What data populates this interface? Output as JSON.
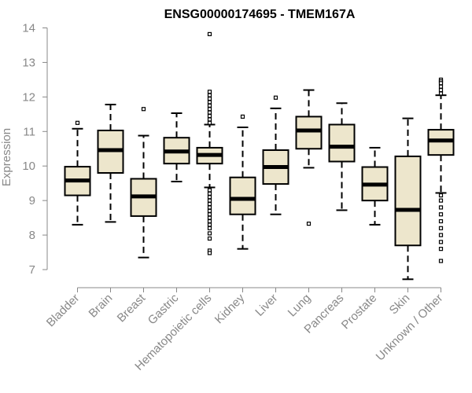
{
  "chart_data": {
    "type": "box",
    "title": "ENSG00000174695 - TMEM167A",
    "ylabel": "Expression",
    "xlabel": "",
    "ylim": [
      6.6,
      14.3
    ],
    "yticks": [
      7,
      8,
      9,
      10,
      11,
      12,
      13,
      14
    ],
    "ytick_labels": [
      "7",
      "8",
      "9",
      "10",
      "11",
      "12",
      "13",
      "14"
    ],
    "colors": {
      "box_fill": "#ede6cc",
      "box_stroke": "#000000",
      "axis": "#888888",
      "median": "#000000"
    },
    "categories": [
      "Bladder",
      "Brain",
      "Breast",
      "Gastric",
      "Hematopoietic cells",
      "Kidney",
      "Liver",
      "Lung",
      "Pancreas",
      "Prostate",
      "Skin",
      "Unknown / Other"
    ],
    "boxes": [
      {
        "name": "Bladder",
        "whisker_low": 8.3,
        "q1": 9.15,
        "median": 9.58,
        "q3": 9.98,
        "whisker_high": 11.08,
        "outliers": [
          11.25
        ]
      },
      {
        "name": "Brain",
        "whisker_low": 8.38,
        "q1": 9.8,
        "median": 10.46,
        "q3": 11.03,
        "whisker_high": 11.78,
        "outliers": []
      },
      {
        "name": "Breast",
        "whisker_low": 7.35,
        "q1": 8.55,
        "median": 9.12,
        "q3": 9.63,
        "whisker_high": 10.88,
        "outliers": [
          11.65
        ]
      },
      {
        "name": "Gastric",
        "whisker_low": 9.55,
        "q1": 10.07,
        "median": 10.42,
        "q3": 10.82,
        "whisker_high": 11.53,
        "outliers": []
      },
      {
        "name": "Hematopoietic cells",
        "whisker_low": 9.38,
        "q1": 10.07,
        "median": 10.32,
        "q3": 10.53,
        "whisker_high": 11.2,
        "outliers": [
          13.82,
          12.15,
          12.05,
          11.95,
          11.85,
          11.75,
          11.65,
          11.55,
          11.45,
          11.35,
          11.25,
          9.3,
          9.2,
          9.1,
          9.0,
          8.9,
          8.8,
          8.7,
          8.6,
          8.5,
          8.4,
          8.3,
          8.2,
          8.05,
          7.9,
          7.55,
          7.48
        ]
      },
      {
        "name": "Kidney",
        "whisker_low": 7.6,
        "q1": 8.6,
        "median": 9.05,
        "q3": 9.67,
        "whisker_high": 11.12,
        "outliers": [
          11.43
        ]
      },
      {
        "name": "Liver",
        "whisker_low": 8.6,
        "q1": 9.48,
        "median": 9.97,
        "q3": 10.46,
        "whisker_high": 11.67,
        "outliers": [
          11.98
        ]
      },
      {
        "name": "Lung",
        "whisker_low": 9.95,
        "q1": 10.5,
        "median": 11.03,
        "q3": 11.43,
        "whisker_high": 12.2,
        "outliers": [
          8.33
        ]
      },
      {
        "name": "Pancreas",
        "whisker_low": 8.72,
        "q1": 10.13,
        "median": 10.56,
        "q3": 11.2,
        "whisker_high": 11.82,
        "outliers": []
      },
      {
        "name": "Prostate",
        "whisker_low": 8.3,
        "q1": 9.0,
        "median": 9.46,
        "q3": 9.97,
        "whisker_high": 10.53,
        "outliers": []
      },
      {
        "name": "Skin",
        "whisker_low": 6.72,
        "q1": 7.7,
        "median": 8.73,
        "q3": 10.28,
        "whisker_high": 11.38,
        "outliers": []
      },
      {
        "name": "Unknown / Other",
        "whisker_low": 9.22,
        "q1": 10.32,
        "median": 10.74,
        "q3": 11.05,
        "whisker_high": 12.05,
        "outliers": [
          12.5,
          12.45,
          12.4,
          12.3,
          12.2,
          12.1,
          9.15,
          9.0,
          8.8,
          8.6,
          8.4,
          8.2,
          8.0,
          7.8,
          7.6,
          7.25
        ]
      }
    ]
  }
}
